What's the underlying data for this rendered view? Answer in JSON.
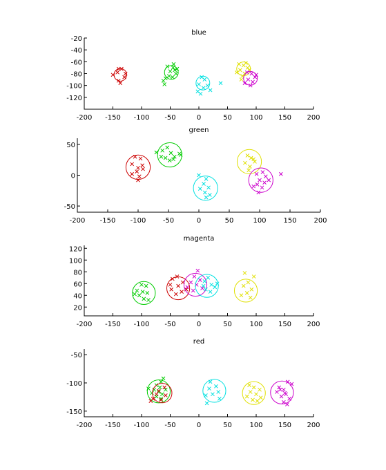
{
  "chart_data": [
    {
      "type": "scatter",
      "title": "blue",
      "xlim": [
        -200,
        200
      ],
      "ylim": [
        -140,
        -20
      ],
      "xticks": [
        -200,
        -150,
        -100,
        -50,
        0,
        50,
        100,
        150,
        200
      ],
      "yticks": [
        -20,
        -40,
        -60,
        -80,
        -100,
        -120
      ],
      "clusters": [
        {
          "color": "#cc0000",
          "center": [
            -137,
            -82
          ],
          "radius": 11,
          "points": [
            [
              -140,
              -72
            ],
            [
              -135,
              -72
            ],
            [
              -142,
              -78
            ],
            [
              -130,
              -86
            ],
            [
              -140,
              -92
            ],
            [
              -137,
              -96
            ],
            [
              -150,
              -82
            ],
            [
              -128,
              -80
            ]
          ]
        },
        {
          "color": "#00cc00",
          "center": [
            -48,
            -78
          ],
          "radius": 12,
          "points": [
            [
              -55,
              -68
            ],
            [
              -45,
              -70
            ],
            [
              -42,
              -74
            ],
            [
              -50,
              -76
            ],
            [
              -40,
              -80
            ],
            [
              -52,
              -84
            ],
            [
              -58,
              -88
            ],
            [
              -46,
              -86
            ],
            [
              -38,
              -72
            ],
            [
              -60,
              -98
            ],
            [
              -62,
              -92
            ],
            [
              -44,
              -64
            ]
          ]
        },
        {
          "color": "#00e0e0",
          "center": [
            7,
            -96
          ],
          "radius": 12,
          "points": [
            [
              5,
              -86
            ],
            [
              10,
              -90
            ],
            [
              0,
              -98
            ],
            [
              8,
              -104
            ],
            [
              15,
              -100
            ],
            [
              -2,
              -110
            ],
            [
              3,
              -114
            ],
            [
              20,
              -108
            ],
            [
              38,
              -96
            ]
          ]
        },
        {
          "color": "#e0e000",
          "center": [
            78,
            -72
          ],
          "radius": 12,
          "points": [
            [
              70,
              -64
            ],
            [
              78,
              -66
            ],
            [
              85,
              -70
            ],
            [
              72,
              -74
            ],
            [
              66,
              -78
            ],
            [
              80,
              -80
            ],
            [
              76,
              -84
            ],
            [
              88,
              -74
            ],
            [
              74,
              -90
            ],
            [
              82,
              -62
            ]
          ]
        },
        {
          "color": "#cc00cc",
          "center": [
            90,
            -88
          ],
          "radius": 12,
          "points": [
            [
              84,
              -78
            ],
            [
              92,
              -80
            ],
            [
              98,
              -86
            ],
            [
              86,
              -90
            ],
            [
              94,
              -94
            ],
            [
              80,
              -96
            ],
            [
              90,
              -100
            ],
            [
              100,
              -82
            ]
          ]
        }
      ]
    },
    {
      "type": "scatter",
      "title": "green",
      "xlim": [
        -200,
        200
      ],
      "ylim": [
        -60,
        60
      ],
      "xticks": [
        -200,
        -150,
        -100,
        -50,
        0,
        50,
        100,
        150,
        200
      ],
      "yticks": [
        50,
        0,
        -50
      ],
      "clusters": [
        {
          "color": "#cc0000",
          "center": [
            -100,
            13
          ],
          "radius": 20,
          "points": [
            [
              -105,
              30
            ],
            [
              -96,
              27
            ],
            [
              -110,
              18
            ],
            [
              -100,
              12
            ],
            [
              -93,
              16
            ],
            [
              -102,
              6
            ],
            [
              -110,
              2
            ],
            [
              -98,
              -2
            ],
            [
              -100,
              -8
            ],
            [
              -92,
              10
            ]
          ]
        },
        {
          "color": "#00cc00",
          "center": [
            -48,
            33
          ],
          "radius": 20,
          "points": [
            [
              -70,
              37
            ],
            [
              -60,
              40
            ],
            [
              -52,
              45
            ],
            [
              -46,
              36
            ],
            [
              -40,
              30
            ],
            [
              -32,
              35
            ],
            [
              -55,
              28
            ],
            [
              -48,
              24
            ],
            [
              -62,
              30
            ],
            [
              -42,
              26
            ],
            [
              -30,
              33
            ]
          ]
        },
        {
          "color": "#00e0e0",
          "center": [
            11,
            -21
          ],
          "radius": 20,
          "points": [
            [
              0,
              0
            ],
            [
              12,
              -6
            ],
            [
              8,
              -14
            ],
            [
              16,
              -20
            ],
            [
              2,
              -22
            ],
            [
              10,
              -28
            ],
            [
              18,
              -32
            ],
            [
              12,
              -36
            ]
          ]
        },
        {
          "color": "#e0e000",
          "center": [
            83,
            22
          ],
          "radius": 20,
          "points": [
            [
              80,
              32
            ],
            [
              86,
              28
            ],
            [
              92,
              22
            ],
            [
              76,
              20
            ],
            [
              84,
              14
            ],
            [
              90,
              26
            ],
            [
              82,
              8
            ]
          ]
        },
        {
          "color": "#cc00cc",
          "center": [
            102,
            -8
          ],
          "radius": 20,
          "points": [
            [
              95,
              2
            ],
            [
              105,
              5
            ],
            [
              110,
              -2
            ],
            [
              100,
              -8
            ],
            [
              108,
              -12
            ],
            [
              96,
              -15
            ],
            [
              104,
              -20
            ],
            [
              115,
              -8
            ],
            [
              90,
              -18
            ],
            [
              135,
              2
            ],
            [
              98,
              -28
            ]
          ]
        }
      ]
    },
    {
      "type": "scatter",
      "title": "magenta",
      "xlim": [
        -200,
        200
      ],
      "ylim": [
        5,
        125
      ],
      "xticks": [
        -200,
        -150,
        -100,
        -50,
        0,
        50,
        100,
        150,
        200
      ],
      "yticks": [
        120,
        100,
        80,
        60,
        40,
        20
      ],
      "clusters": [
        {
          "color": "#00cc00",
          "center": [
            -96,
            44
          ],
          "radius": 20,
          "points": [
            [
              -100,
              58
            ],
            [
              -92,
              56
            ],
            [
              -108,
              48
            ],
            [
              -98,
              46
            ],
            [
              -90,
              44
            ],
            [
              -104,
              40
            ],
            [
              -96,
              34
            ],
            [
              -88,
              32
            ],
            [
              -112,
              42
            ]
          ]
        },
        {
          "color": "#cc0000",
          "center": [
            -36,
            52
          ],
          "radius": 20,
          "points": [
            [
              -46,
              68
            ],
            [
              -38,
              72
            ],
            [
              -28,
              62
            ],
            [
              -36,
              56
            ],
            [
              -48,
              50
            ],
            [
              -30,
              46
            ],
            [
              -40,
              42
            ],
            [
              -22,
              50
            ],
            [
              -50,
              58
            ]
          ]
        },
        {
          "color": "#cc00cc",
          "center": [
            -6,
            58
          ],
          "radius": 20,
          "points": [
            [
              -2,
              82
            ],
            [
              -8,
              72
            ],
            [
              2,
              66
            ],
            [
              -14,
              62
            ],
            [
              -4,
              58
            ],
            [
              -20,
              54
            ],
            [
              6,
              52
            ],
            [
              -10,
              48
            ]
          ]
        },
        {
          "color": "#00e0e0",
          "center": [
            14,
            56
          ],
          "radius": 20,
          "points": [
            [
              16,
              70
            ],
            [
              10,
              64
            ],
            [
              22,
              58
            ],
            [
              28,
              54
            ],
            [
              12,
              50
            ],
            [
              20,
              46
            ],
            [
              32,
              60
            ],
            [
              8,
              56
            ]
          ]
        },
        {
          "color": "#e0e000",
          "center": [
            82,
            48
          ],
          "radius": 20,
          "points": [
            [
              80,
              78
            ],
            [
              86,
              62
            ],
            [
              78,
              56
            ],
            [
              92,
              50
            ],
            [
              84,
              44
            ],
            [
              74,
              40
            ],
            [
              90,
              36
            ],
            [
              96,
              72
            ]
          ]
        }
      ]
    },
    {
      "type": "scatter",
      "title": "red",
      "xlim": [
        -200,
        200
      ],
      "ylim": [
        -160,
        -40
      ],
      "xticks": [
        -200,
        -150,
        -100,
        -50,
        0,
        50,
        100,
        150,
        200
      ],
      "yticks": [
        -50,
        -100,
        -150
      ],
      "clusters": [
        {
          "color": "#00cc00",
          "center": [
            -70,
            -115
          ],
          "radius": 20,
          "points": [
            [
              -62,
              -92
            ],
            [
              -66,
              -98
            ],
            [
              -74,
              -104
            ],
            [
              -68,
              -108
            ],
            [
              -78,
              -112
            ],
            [
              -70,
              -116
            ],
            [
              -64,
              -120
            ],
            [
              -82,
              -118
            ],
            [
              -74,
              -124
            ],
            [
              -66,
              -128
            ],
            [
              -88,
              -110
            ],
            [
              -58,
              -112
            ]
          ]
        },
        {
          "color": "#cc0000",
          "center": [
            -64,
            -118
          ],
          "radius": 17,
          "points": [
            [
              -60,
              -108
            ],
            [
              -70,
              -114
            ],
            [
              -58,
              -122
            ],
            [
              -74,
              -120
            ],
            [
              -80,
              -128
            ],
            [
              -66,
              -130
            ],
            [
              -84,
              -132
            ]
          ]
        },
        {
          "color": "#00e0e0",
          "center": [
            27,
            -114
          ],
          "radius": 20,
          "points": [
            [
              20,
              -98
            ],
            [
              30,
              -106
            ],
            [
              18,
              -110
            ],
            [
              34,
              -116
            ],
            [
              24,
              -120
            ],
            [
              12,
              -122
            ],
            [
              36,
              -128
            ],
            [
              14,
              -136
            ]
          ]
        },
        {
          "color": "#e0e000",
          "center": [
            96,
            -118
          ],
          "radius": 20,
          "points": [
            [
              88,
              -104
            ],
            [
              96,
              -108
            ],
            [
              106,
              -112
            ],
            [
              90,
              -116
            ],
            [
              100,
              -120
            ],
            [
              84,
              -124
            ],
            [
              108,
              -126
            ],
            [
              94,
              -130
            ],
            [
              102,
              -132
            ]
          ]
        },
        {
          "color": "#cc00cc",
          "center": [
            145,
            -117
          ],
          "radius": 20,
          "points": [
            [
              155,
              -98
            ],
            [
              162,
              -102
            ],
            [
              140,
              -108
            ],
            [
              148,
              -112
            ],
            [
              136,
              -116
            ],
            [
              152,
              -120
            ],
            [
              144,
              -124
            ],
            [
              158,
              -128
            ],
            [
              148,
              -134
            ],
            [
              154,
              -138
            ],
            [
              142,
              -112
            ],
            [
              150,
              -118
            ]
          ]
        }
      ]
    }
  ]
}
